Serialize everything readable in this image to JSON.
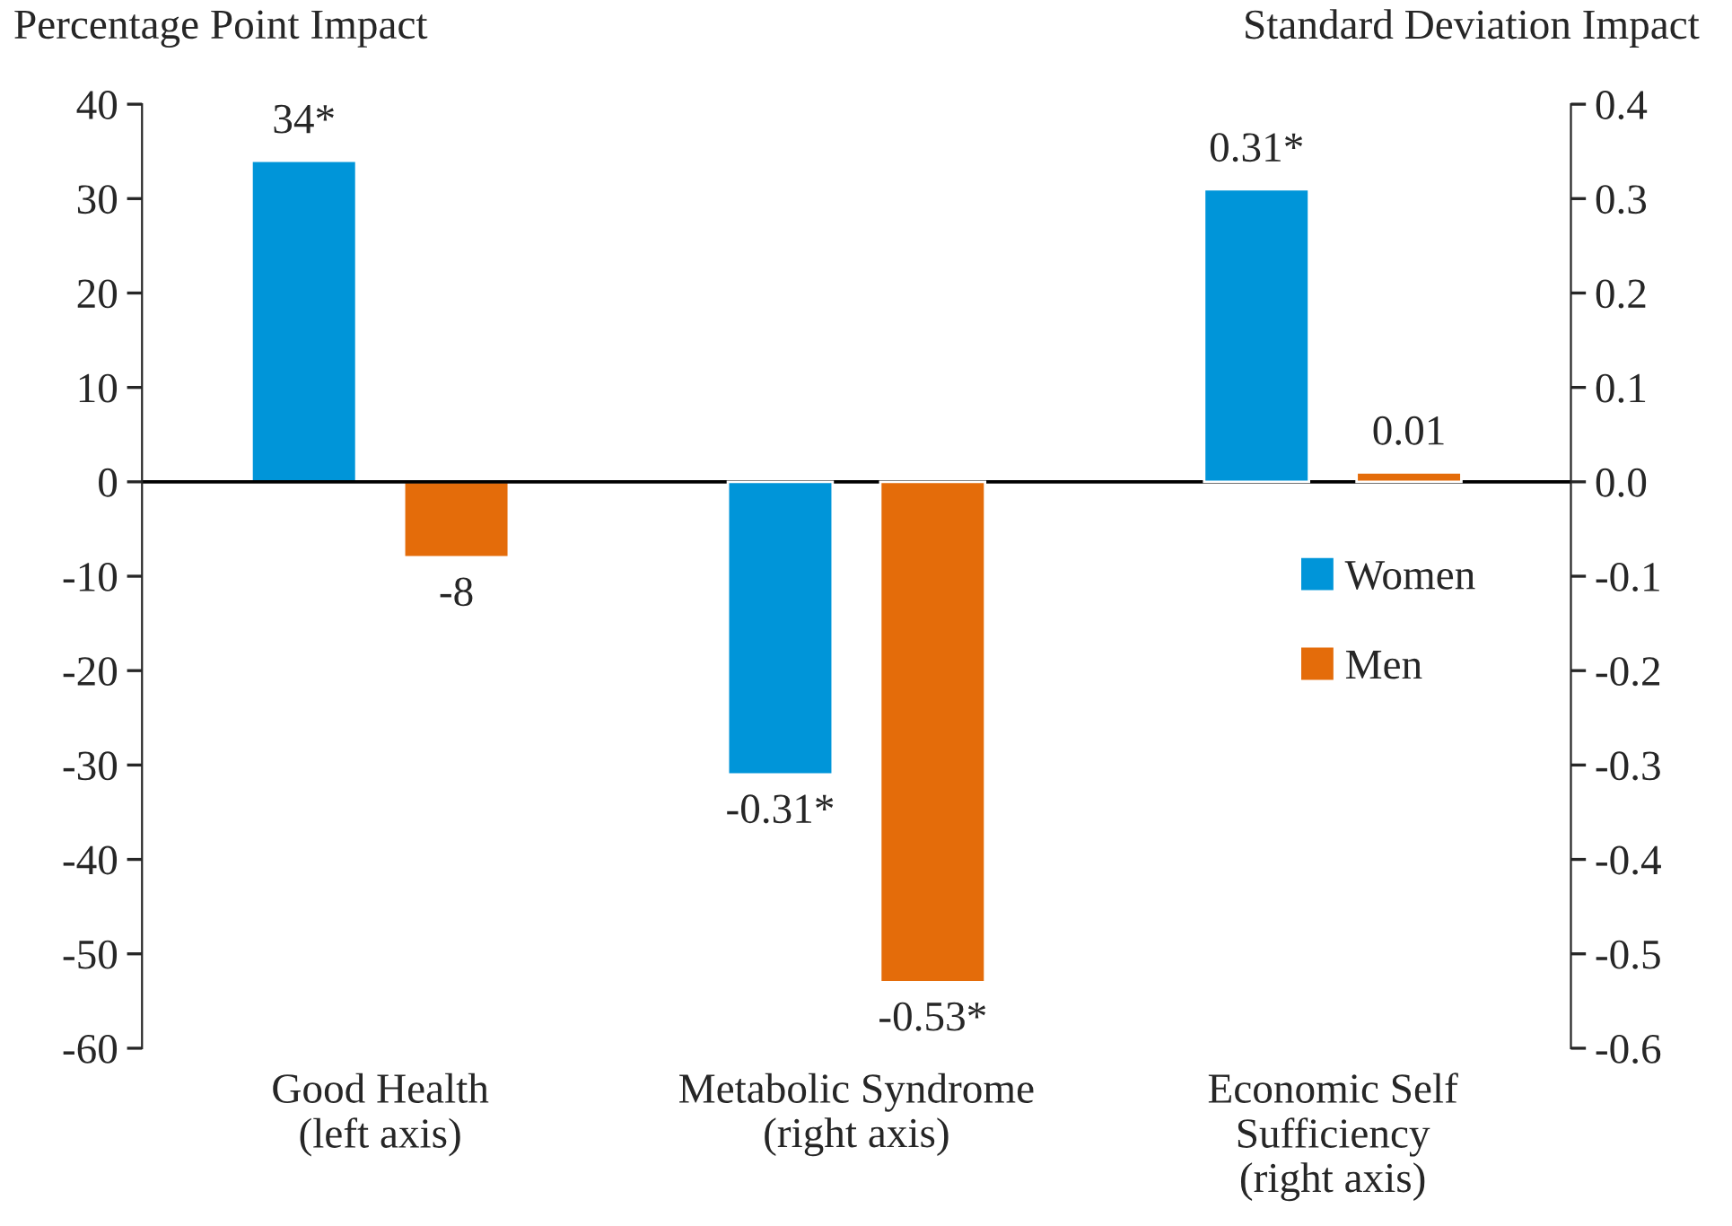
{
  "chart_data": {
    "type": "bar",
    "categories": [
      "Good Health\n(left axis)",
      "Metabolic Syndrome\n(right axis)",
      "Economic Self\nSufficiency\n(right axis)"
    ],
    "series": [
      {
        "name": "Women",
        "color": "#0095d9",
        "values": [
          34,
          null,
          null
        ],
        "value_labels": [
          "34*",
          null,
          null
        ]
      },
      {
        "name": "Men",
        "color": "#e46c0a",
        "values": [
          -8,
          null,
          null
        ],
        "value_labels": [
          "-8",
          null,
          null
        ]
      },
      {
        "color": "#0095d9",
        "axis": "y2",
        "values": [
          null,
          -0.31,
          0.31
        ],
        "value_labels": [
          null,
          "-0.31*",
          "0.31*"
        ]
      },
      {
        "color": "#e46c0a",
        "axis": "y2",
        "values": [
          null,
          -0.53,
          0.01
        ],
        "value_labels": [
          null,
          "-0.53*",
          "0.01"
        ]
      }
    ],
    "ylabel": "Percentage Point Impact",
    "y2label": "Standard Deviation Impact",
    "ylim": [
      -60,
      40
    ],
    "yticks": [
      -60,
      -50,
      -40,
      -30,
      -20,
      -10,
      0,
      10,
      20,
      30,
      40
    ],
    "y2lim": [
      -0.6,
      0.4
    ],
    "y2ticks": [
      {
        "value": -0.6,
        "label": "-0.6"
      },
      {
        "value": -0.5,
        "label": "-0.5"
      },
      {
        "value": -0.4,
        "label": "-0.4"
      },
      {
        "value": -0.3,
        "label": "-0.3"
      },
      {
        "value": -0.2,
        "label": "-0.2"
      },
      {
        "value": -0.1,
        "label": "-0.1"
      },
      {
        "value": 0,
        "label": "0.0"
      },
      {
        "value": 0.1,
        "label": "0.1"
      },
      {
        "value": 0.2,
        "label": "0.2"
      },
      {
        "value": 0.3,
        "label": "0.3"
      },
      {
        "value": 0.4,
        "label": "0.4"
      }
    ],
    "ref_lines": [
      {
        "axis": "y",
        "value": 0,
        "color": "#000000"
      }
    ],
    "legend": "right",
    "grid": false
  }
}
